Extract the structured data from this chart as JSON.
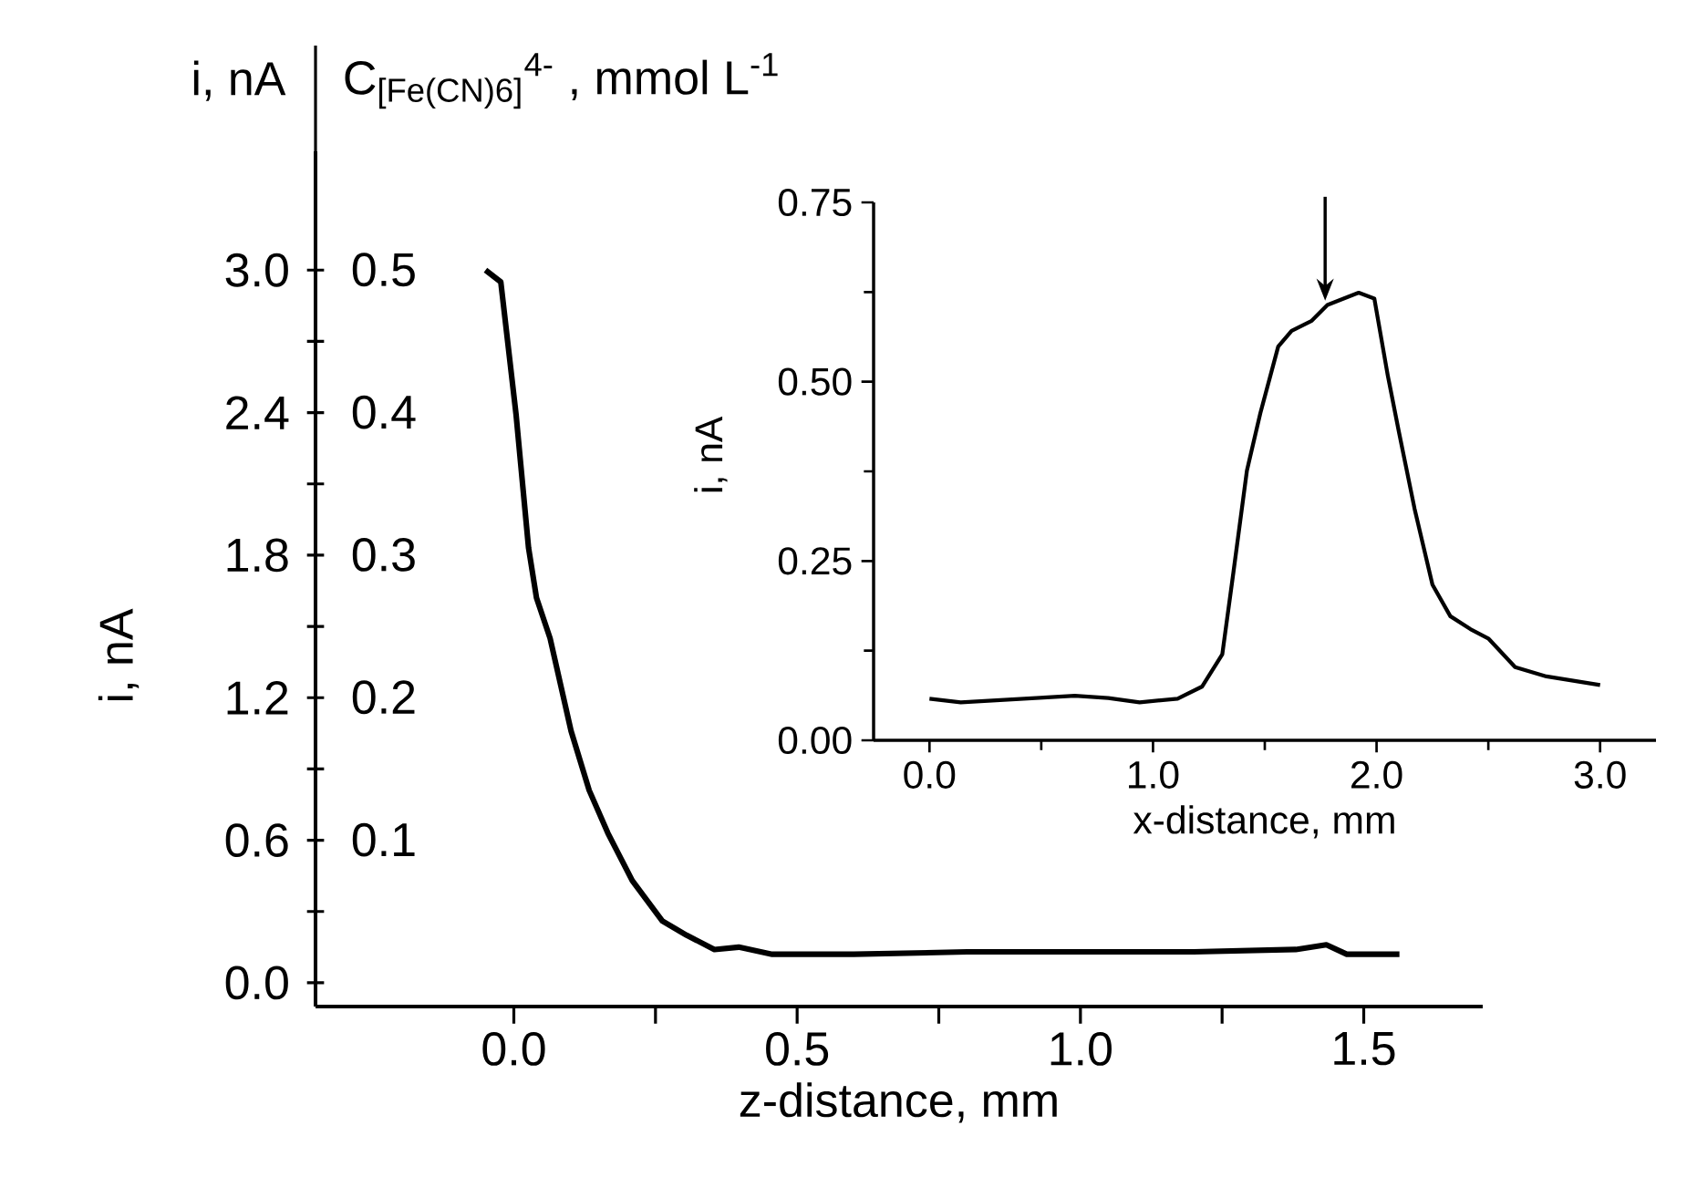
{
  "chart_data": [
    {
      "type": "line",
      "xlabel": "z-distance, mm",
      "ylabel": "i, nA",
      "y2label": "C$_{[Fe(CN)6]}$$^{4-}$ , mmol L$^{-1}$",
      "annotations": [
        "i, nA"
      ],
      "xlim": [
        -0.35,
        1.71
      ],
      "ylim": [
        -0.1,
        3.5
      ],
      "y2lim": [
        -0.017,
        0.583
      ],
      "xticks": [
        {
          "value": 0,
          "label": "0.0"
        },
        0.5,
        {
          "value": 1,
          "label": "1.0"
        },
        1.5
      ],
      "yticks": [
        {
          "value": 0,
          "label": "0.0"
        },
        0.6,
        1.2,
        1.8,
        2.4,
        {
          "value": 3,
          "label": "3.0"
        }
      ],
      "y2ticks": [
        0.1,
        0.2,
        0.3,
        0.4,
        0.5
      ],
      "series": [
        {
          "color": "#000000",
          "x": [
            -0.05,
            -0.023,
            0.004,
            0.026,
            0.04,
            0.064,
            0.101,
            0.133,
            0.166,
            0.209,
            0.262,
            0.305,
            0.354,
            0.397,
            0.456,
            0.6,
            0.8,
            1.0,
            1.2,
            1.38,
            1.434,
            1.47,
            1.563
          ],
          "values": [
            3.0,
            2.95,
            2.39,
            1.83,
            1.62,
            1.45,
            1.06,
            0.81,
            0.63,
            0.43,
            0.26,
            0.2,
            0.14,
            0.15,
            0.12,
            0.12,
            0.13,
            0.13,
            0.13,
            0.14,
            0.16,
            0.12,
            0.12
          ]
        }
      ]
    },
    {
      "type": "line",
      "xlabel": "x-distance, mm",
      "ylabel": "i, nA",
      "xlim": [
        -0.25,
        3.25
      ],
      "ylim": [
        0,
        0.75
      ],
      "xticks": [
        {
          "value": 0,
          "label": "0.0"
        },
        {
          "value": 1,
          "label": "1.0"
        },
        {
          "value": 2,
          "label": "2.0"
        },
        {
          "value": 3,
          "label": "3.0"
        }
      ],
      "yticks": [
        {
          "value": 0,
          "label": "0.00"
        },
        0.25,
        {
          "value": 0.5,
          "label": "0.50"
        },
        0.75
      ],
      "series": [
        {
          "color": "#000000",
          "x": [
            0,
            0.14,
            0.65,
            0.8,
            0.94,
            1.11,
            1.22,
            1.31,
            1.36,
            1.42,
            1.48,
            1.56,
            1.62,
            1.71,
            1.78,
            1.92,
            1.99,
            2.05,
            2.1,
            2.17,
            2.25,
            2.33,
            2.42,
            2.5,
            2.62,
            2.76,
            3.0
          ],
          "values": [
            0.058,
            0.053,
            0.062,
            0.059,
            0.053,
            0.058,
            0.075,
            0.12,
            0.235,
            0.376,
            0.456,
            0.549,
            0.571,
            0.585,
            0.607,
            0.624,
            0.616,
            0.509,
            0.43,
            0.323,
            0.217,
            0.173,
            0.155,
            0.142,
            0.102,
            0.089,
            0.077
          ]
        }
      ]
    }
  ]
}
